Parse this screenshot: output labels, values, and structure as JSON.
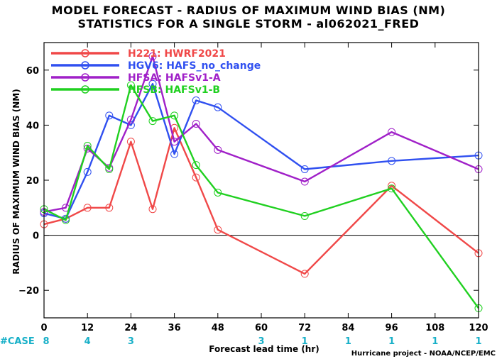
{
  "chart_data": {
    "type": "line",
    "title": "MODEL FORECAST - RADIUS OF MAXIMUM WIND BIAS (NM)",
    "subtitle": "STATISTICS FOR A SINGLE STORM - al062021_FRED",
    "xlabel": "Forecast lead time (hr)",
    "ylabel": "RADIUS OF MAXIMUM WIND BIAS (NM)",
    "xlim": [
      0,
      120
    ],
    "ylim": [
      -30,
      70
    ],
    "xticks": [
      0,
      12,
      24,
      36,
      48,
      60,
      72,
      84,
      96,
      108,
      120
    ],
    "yticks": [
      -20,
      0,
      20,
      40,
      60
    ],
    "zero_line": true,
    "legend_position": "top-left",
    "series": [
      {
        "name": "H221: HWRF2021",
        "color": "#f04848",
        "x": [
          0,
          6,
          12,
          18,
          24,
          30,
          36,
          42,
          48,
          72,
          96,
          120
        ],
        "y": [
          4,
          6,
          10,
          10,
          34,
          9.5,
          39,
          21,
          2,
          -14,
          18,
          -6.5
        ]
      },
      {
        "name": "HGV6: HAFS_no_change",
        "color": "#3050f0",
        "x": [
          0,
          6,
          12,
          18,
          24,
          30,
          36,
          42,
          48,
          72,
          96,
          120
        ],
        "y": [
          8,
          6,
          23,
          43.5,
          40,
          55,
          29.5,
          49,
          46.5,
          24,
          27,
          29
        ]
      },
      {
        "name": "HFSA: HAFSv1-A",
        "color": "#a020c8",
        "x": [
          0,
          6,
          12,
          18,
          24,
          30,
          36,
          42,
          48,
          72,
          96,
          120
        ],
        "y": [
          8.5,
          10,
          31.5,
          24.5,
          42,
          65,
          34,
          40.5,
          31,
          19.5,
          37.5,
          24
        ]
      },
      {
        "name": "HFSB: HAFSv1-B",
        "color": "#20d020",
        "x": [
          0,
          6,
          12,
          18,
          24,
          30,
          36,
          42,
          48,
          72,
          96,
          120
        ],
        "y": [
          9.5,
          5.5,
          32.5,
          24,
          54.5,
          41.5,
          43.5,
          25.5,
          15.5,
          7,
          17,
          -26.5
        ]
      }
    ],
    "cases": {
      "label": "#CASE",
      "color": "#18b0c8",
      "values": [
        {
          "x": 0,
          "n": "8"
        },
        {
          "x": 12,
          "n": "4"
        },
        {
          "x": 24,
          "n": "3"
        },
        {
          "x": 60,
          "n": "3"
        },
        {
          "x": 72,
          "n": "1"
        },
        {
          "x": 84,
          "n": "1"
        },
        {
          "x": 96,
          "n": "1"
        },
        {
          "x": 108,
          "n": "1"
        },
        {
          "x": 120,
          "n": "1"
        }
      ]
    },
    "credit": "Hurricane project - NOAA/NCEP/EMC"
  }
}
